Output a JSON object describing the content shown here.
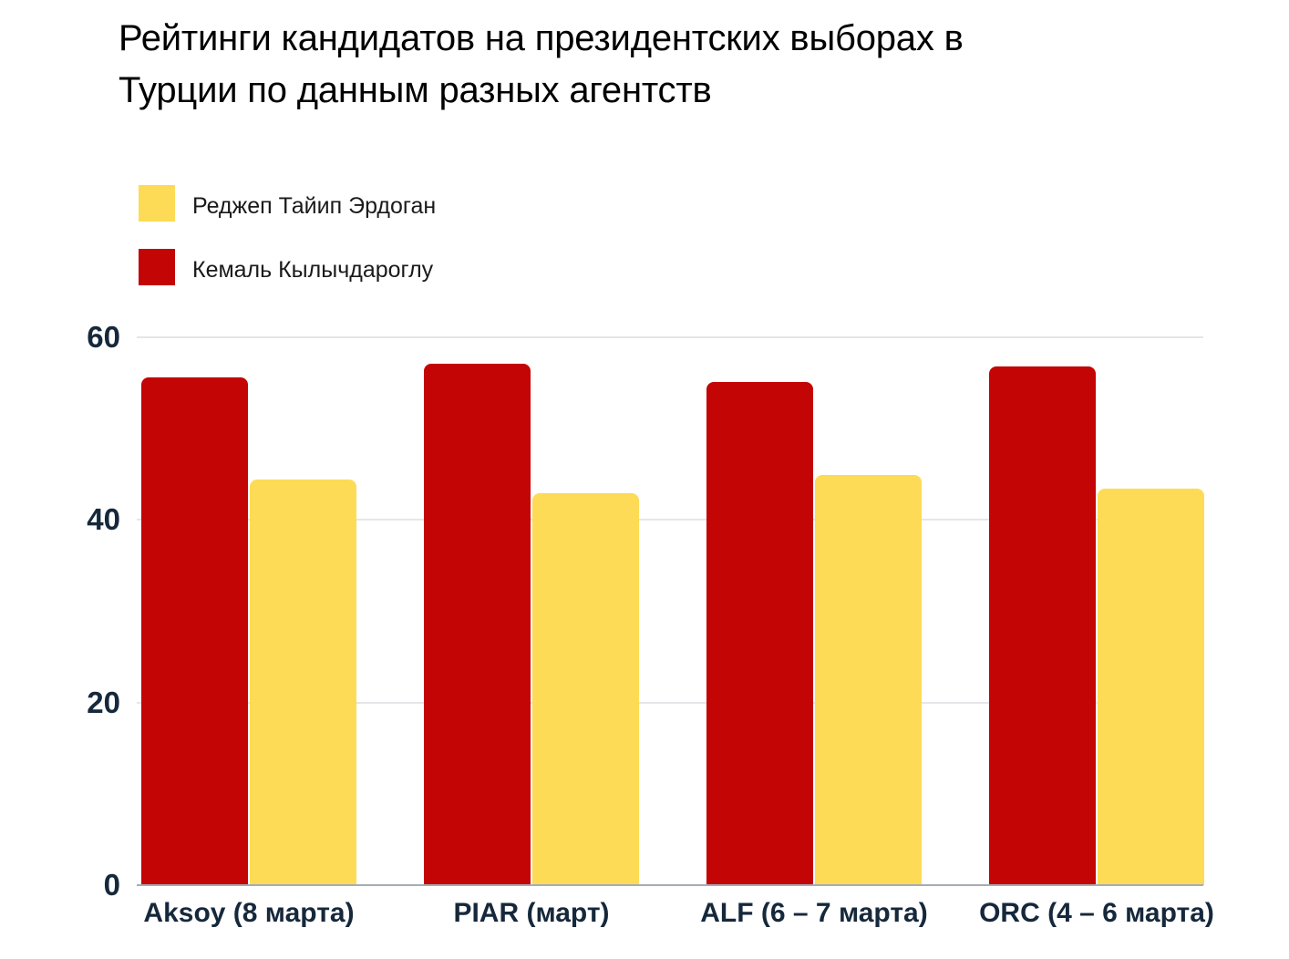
{
  "title_lines": [
    "Рейтинги кандидатов на президентских выборах в",
    "Турции по данным разных агентств"
  ],
  "legend": [
    {
      "label": "Реджеп Тайип Эрдоган",
      "color": "#fddb56"
    },
    {
      "label": "Кемаль Кылычдароглу",
      "color": "#c30505"
    }
  ],
  "chart_data": {
    "type": "bar",
    "title": "Рейтинги кандидатов на президентских выборах в Турции по данным разных агентств",
    "categories": [
      "Aksoy (8 марта)",
      "PIAR (март)",
      "ALF (6 – 7 марта)",
      "ORC (4 – 6 марта)"
    ],
    "series": [
      {
        "name": "Кемаль Кылычдароглу",
        "color": "#c30505",
        "values": [
          55.6,
          57.1,
          55.1,
          56.8
        ]
      },
      {
        "name": "Реджеп Тайип Эрдоган",
        "color": "#fddb56",
        "values": [
          44.4,
          42.9,
          44.9,
          43.4
        ]
      }
    ],
    "yticks": [
      0,
      20,
      40,
      60
    ],
    "ylim": [
      0,
      60
    ],
    "xlabel": "",
    "ylabel": "",
    "grid": true,
    "legend_position": "top-left"
  }
}
